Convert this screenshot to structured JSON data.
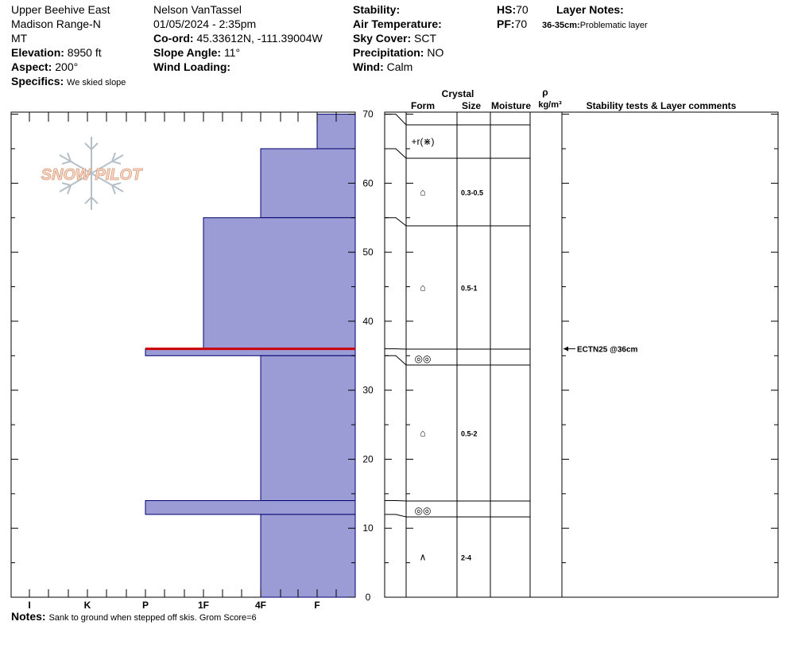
{
  "header": {
    "location": "Upper Beehive East",
    "range": "Madison Range-N",
    "state": "MT",
    "elevation_label": "Elevation:",
    "elevation": "8950 ft",
    "aspect_label": "Aspect:",
    "aspect": "200°",
    "specifics_label": "Specifics:",
    "specifics": "We skied slope",
    "observer": "Nelson VanTassel",
    "datetime": "01/05/2024 - 2:35pm",
    "coord_label": "Co-ord:",
    "coord": "45.33612N, -111.39004W",
    "slope_label": "Slope Angle:",
    "slope": "11°",
    "wind_loading_label": "Wind Loading:",
    "wind_loading": "",
    "stability_label": "Stability:",
    "stability": "",
    "air_temp_label": "Air Temperature:",
    "air_temp": "",
    "sky_label": "Sky Cover:",
    "sky": "SCT",
    "precip_label": "Precipitation:",
    "precip": "NO",
    "wind_label": "Wind:",
    "wind": "Calm",
    "hs_label": "HS:",
    "hs": "70",
    "pf_label": "PF:",
    "pf": "70",
    "layer_notes_label": "Layer Notes:",
    "layer_note_range": "36-35cm:",
    "layer_note_text": "Problematic layer"
  },
  "logo_text": "SNOW PILOT",
  "notes_label": "Notes:",
  "notes": "Sank to ground when stepped off skis. Grom Score=6",
  "columns": {
    "crystal": "Crystal",
    "form": "Form",
    "size": "Size",
    "moisture": "Moisture",
    "rho": "ρ",
    "density_unit": "kg/m³",
    "stability": "Stability tests & Layer comments"
  },
  "chart_data": {
    "type": "bar",
    "orientation": "horizontal",
    "x_categories": [
      "I",
      "K",
      "P",
      "1F",
      "4F",
      "F"
    ],
    "y_ticks": [
      0,
      10,
      20,
      30,
      40,
      50,
      60,
      70
    ],
    "ylim": [
      0,
      70
    ],
    "hardness_layers": [
      {
        "top": 70,
        "bottom": 65,
        "hardness": "F"
      },
      {
        "top": 65,
        "bottom": 55,
        "hardness": "4F"
      },
      {
        "top": 55,
        "bottom": 36,
        "hardness": "1F"
      },
      {
        "top": 36,
        "bottom": 35,
        "hardness": "P"
      },
      {
        "top": 35,
        "bottom": 14,
        "hardness": "4F"
      },
      {
        "top": 14,
        "bottom": 12,
        "hardness": "P"
      },
      {
        "top": 12,
        "bottom": 0,
        "hardness": "4F"
      }
    ],
    "problem_layer_depth": 36,
    "crystal_layers": [
      {
        "top": 70,
        "bottom": 65,
        "form": "+r(⋇)",
        "size": ""
      },
      {
        "top": 65,
        "bottom": 55,
        "form": "⌂",
        "size": "0.3-0.5"
      },
      {
        "top": 55,
        "bottom": 36,
        "form": "⌂",
        "size": "0.5-1"
      },
      {
        "top": 36,
        "bottom": 35,
        "form": "◎◎",
        "size": ""
      },
      {
        "top": 35,
        "bottom": 14,
        "form": "⌂",
        "size": "0.5-2"
      },
      {
        "top": 14,
        "bottom": 12,
        "form": "◎◎",
        "size": ""
      },
      {
        "top": 12,
        "bottom": 0,
        "form": "∧",
        "size": "2-4"
      }
    ],
    "stability_tests": [
      {
        "depth": 36,
        "label": "ECTN25 @36cm"
      }
    ],
    "colors": {
      "fill": "#9b9bd6",
      "edge": "#00006e",
      "problem": "#cc0000"
    }
  }
}
